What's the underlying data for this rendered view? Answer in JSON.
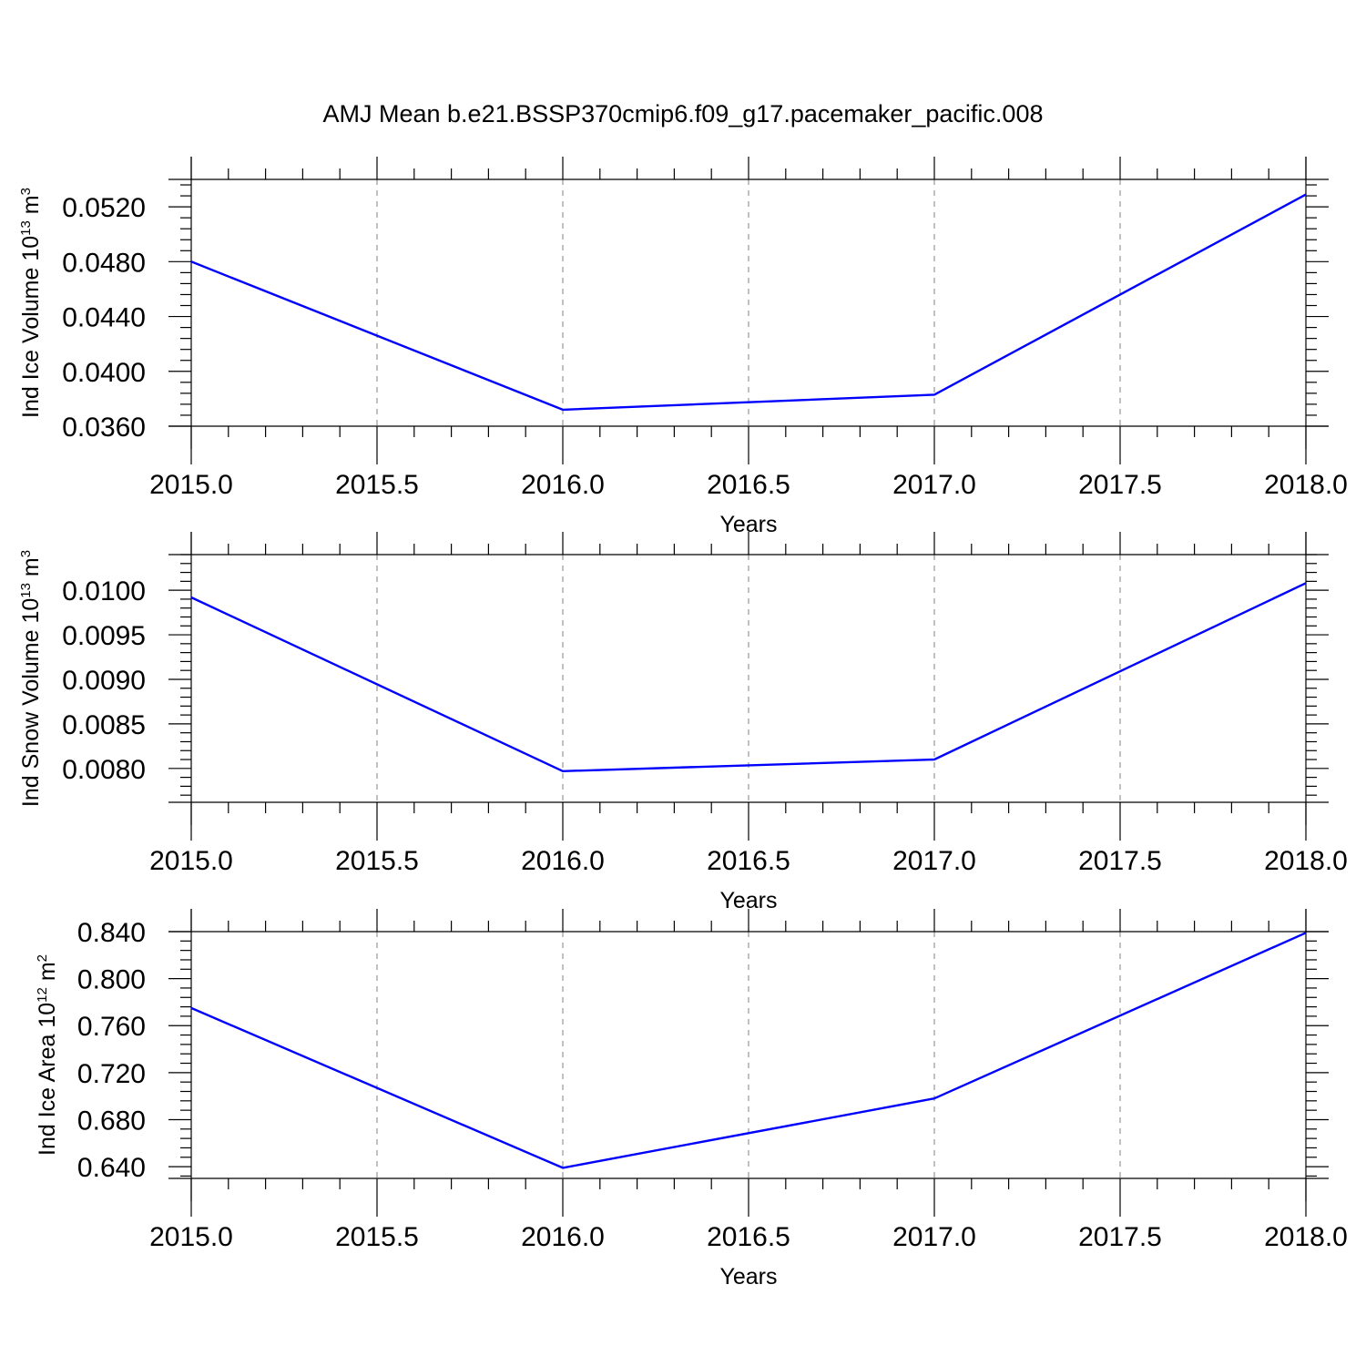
{
  "figure": {
    "title": "AMJ Mean b.e21.BSSP370cmip6.f09_g17.pacemaker_pacific.008"
  },
  "colors": {
    "line": "#0000ff",
    "axis": "#000000",
    "grid": "#808080"
  },
  "chart_data": [
    {
      "type": "line",
      "title": "",
      "xlabel": "Years",
      "ylabel": {
        "text": "Ind Ice Volume 10",
        "sup": "13",
        "unit": " m",
        "unit_sup": "3"
      },
      "xlim": [
        2015.0,
        2018.0
      ],
      "ylim": [
        0.036,
        0.054
      ],
      "x_ticks": [
        2015.0,
        2015.5,
        2016.0,
        2016.5,
        2017.0,
        2017.5,
        2018.0
      ],
      "x_tick_labels": [
        "2015.0",
        "2015.5",
        "2016.0",
        "2016.5",
        "2017.0",
        "2017.5",
        "2018.0"
      ],
      "x_minor_step": 0.1,
      "y_ticks": [
        0.036,
        0.04,
        0.044,
        0.048,
        0.052
      ],
      "y_tick_labels": [
        "0.0360",
        "0.0400",
        "0.0440",
        "0.0480",
        "0.0520"
      ],
      "y_minor_step": 0.0008,
      "grid": "vertical dashed at major x ticks",
      "x": [
        2015,
        2016,
        2017,
        2018
      ],
      "series": [
        {
          "values": [
            0.048,
            0.0372,
            0.0383,
            0.0529
          ]
        }
      ]
    },
    {
      "type": "line",
      "title": "",
      "xlabel": "Years",
      "ylabel": {
        "text": "Ind Snow Volume 10",
        "sup": "13",
        "unit": " m",
        "unit_sup": "3"
      },
      "xlim": [
        2015.0,
        2018.0
      ],
      "ylim": [
        0.00762,
        0.0104
      ],
      "x_ticks": [
        2015.0,
        2015.5,
        2016.0,
        2016.5,
        2017.0,
        2017.5,
        2018.0
      ],
      "x_tick_labels": [
        "2015.0",
        "2015.5",
        "2016.0",
        "2016.5",
        "2017.0",
        "2017.5",
        "2018.0"
      ],
      "x_minor_step": 0.1,
      "y_ticks": [
        0.008,
        0.0085,
        0.009,
        0.0095,
        0.01
      ],
      "y_tick_labels": [
        "0.0080",
        "0.0085",
        "0.0090",
        "0.0095",
        "0.0100"
      ],
      "y_minor_step": 0.0001,
      "grid": "vertical dashed at major x ticks",
      "x": [
        2015,
        2016,
        2017,
        2018
      ],
      "series": [
        {
          "values": [
            0.00992,
            0.00797,
            0.0081,
            0.01008
          ]
        }
      ]
    },
    {
      "type": "line",
      "title": "",
      "xlabel": "Years",
      "ylabel": {
        "text": "Ind Ice Area 10",
        "sup": "12",
        "unit": " m",
        "unit_sup": "2"
      },
      "xlim": [
        2015.0,
        2018.0
      ],
      "ylim": [
        0.63,
        0.84
      ],
      "x_ticks": [
        2015.0,
        2015.5,
        2016.0,
        2016.5,
        2017.0,
        2017.5,
        2018.0
      ],
      "x_tick_labels": [
        "2015.0",
        "2015.5",
        "2016.0",
        "2016.5",
        "2017.0",
        "2017.5",
        "2018.0"
      ],
      "x_minor_step": 0.1,
      "y_ticks": [
        0.64,
        0.68,
        0.72,
        0.76,
        0.8,
        0.84
      ],
      "y_tick_labels": [
        "0.640",
        "0.680",
        "0.720",
        "0.760",
        "0.800",
        "0.840"
      ],
      "y_minor_step": 0.008,
      "grid": "vertical dashed at major x ticks",
      "x": [
        2015,
        2016,
        2017,
        2018
      ],
      "series": [
        {
          "values": [
            0.775,
            0.639,
            0.698,
            0.839
          ]
        }
      ]
    }
  ]
}
